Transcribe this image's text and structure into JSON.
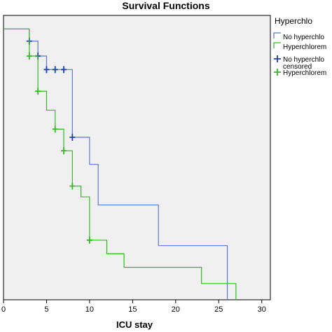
{
  "chart_data": {
    "type": "line",
    "title": "Survival Functions",
    "xlabel": "ICU stay",
    "ylabel": "",
    "xlim": [
      0,
      31
    ],
    "ylim": [
      0,
      1.05
    ],
    "xticks": [
      0,
      5,
      10,
      15,
      20,
      25,
      30
    ],
    "grid": false,
    "legend": {
      "title": "Hyperchlo",
      "placement": "right",
      "entries": [
        {
          "label": "No hyperchlo",
          "kind": "line",
          "series": 0
        },
        {
          "label": "Hyperchlorem",
          "kind": "line",
          "series": 1
        },
        {
          "label": "No hyperchlo censored",
          "kind": "marker",
          "series": 0
        },
        {
          "label": "Hyperchlorem",
          "kind": "marker",
          "series": 1
        }
      ]
    },
    "series": [
      {
        "name": "No hyperchlo",
        "color": "#1f3fb5",
        "line_color": "#5b78d6",
        "steps": [
          [
            -1,
            1.0
          ],
          [
            3,
            0.955
          ],
          [
            4,
            0.9
          ],
          [
            5,
            0.85
          ],
          [
            8,
            0.6
          ],
          [
            10,
            0.5
          ],
          [
            11,
            0.35
          ],
          [
            18,
            0.2
          ],
          [
            26,
            0.0
          ]
        ],
        "censored": [
          [
            3,
            0.955
          ],
          [
            4,
            0.9
          ],
          [
            5,
            0.85
          ],
          [
            6,
            0.85
          ],
          [
            7,
            0.85
          ],
          [
            8,
            0.6
          ]
        ]
      },
      {
        "name": "Hyperchlorem",
        "color": "#33bb22",
        "line_color": "#33bb22",
        "steps": [
          [
            -1,
            1.0
          ],
          [
            3,
            0.9
          ],
          [
            4,
            0.77
          ],
          [
            5,
            0.7
          ],
          [
            6,
            0.63
          ],
          [
            7,
            0.55
          ],
          [
            8,
            0.42
          ],
          [
            9,
            0.38
          ],
          [
            10,
            0.22
          ],
          [
            12,
            0.17
          ],
          [
            14,
            0.12
          ],
          [
            23,
            0.06
          ],
          [
            27,
            0.0
          ]
        ],
        "censored": [
          [
            3,
            0.9
          ],
          [
            4,
            0.77
          ],
          [
            6,
            0.63
          ],
          [
            7,
            0.55
          ],
          [
            8,
            0.42
          ],
          [
            10,
            0.22
          ]
        ]
      }
    ]
  }
}
